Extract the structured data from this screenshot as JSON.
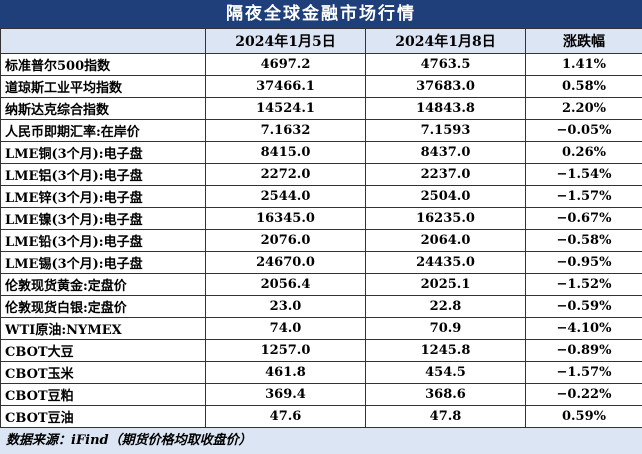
{
  "header": {
    "title": "隔夜全球金融市场行情"
  },
  "table": {
    "columns": [
      "2024年1月5日",
      "2024年1月8日",
      "涨跌幅"
    ],
    "rows": [
      [
        "标准普尔500指数",
        "4697.2",
        "4763.5",
        "1.41%"
      ],
      [
        "道琼斯工业平均指数",
        "37466.1",
        "37683.0",
        "0.58%"
      ],
      [
        "纳斯达克综合指数",
        "14524.1",
        "14843.8",
        "2.20%"
      ],
      [
        "人民币即期汇率:在岸价",
        "7.1632",
        "7.1593",
        "−0.05%"
      ],
      [
        "LME铜(3个月):电子盘",
        "8415.0",
        "8437.0",
        "0.26%"
      ],
      [
        "LME铝(3个月):电子盘",
        "2272.0",
        "2237.0",
        "−1.54%"
      ],
      [
        "LME锌(3个月):电子盘",
        "2544.0",
        "2504.0",
        "−1.57%"
      ],
      [
        "LME镍(3个月):电子盘",
        "16345.0",
        "16235.0",
        "−0.67%"
      ],
      [
        "LME铅(3个月):电子盘",
        "2076.0",
        "2064.0",
        "−0.58%"
      ],
      [
        "LME锡(3个月):电子盘",
        "24670.0",
        "24435.0",
        "−0.95%"
      ],
      [
        "伦敦现货黄金:定盘价",
        "2056.4",
        "2025.1",
        "−1.52%"
      ],
      [
        "伦敦现货白银:定盘价",
        "23.0",
        "22.8",
        "−0.59%"
      ],
      [
        "WTI原油:NYMEX",
        "74.0",
        "70.9",
        "−4.10%"
      ],
      [
        "CBOT大豆",
        "1257.0",
        "1245.8",
        "−0.89%"
      ],
      [
        "CBOT玉米",
        "461.8",
        "454.5",
        "−1.57%"
      ],
      [
        "CBOT豆粕",
        "369.4",
        "368.6",
        "−0.22%"
      ],
      [
        "CBOT豆油",
        "47.6",
        "47.8",
        "0.59%"
      ]
    ]
  },
  "footer": {
    "source": "数据来源：iFind（期货价格均取收盘价）"
  }
}
